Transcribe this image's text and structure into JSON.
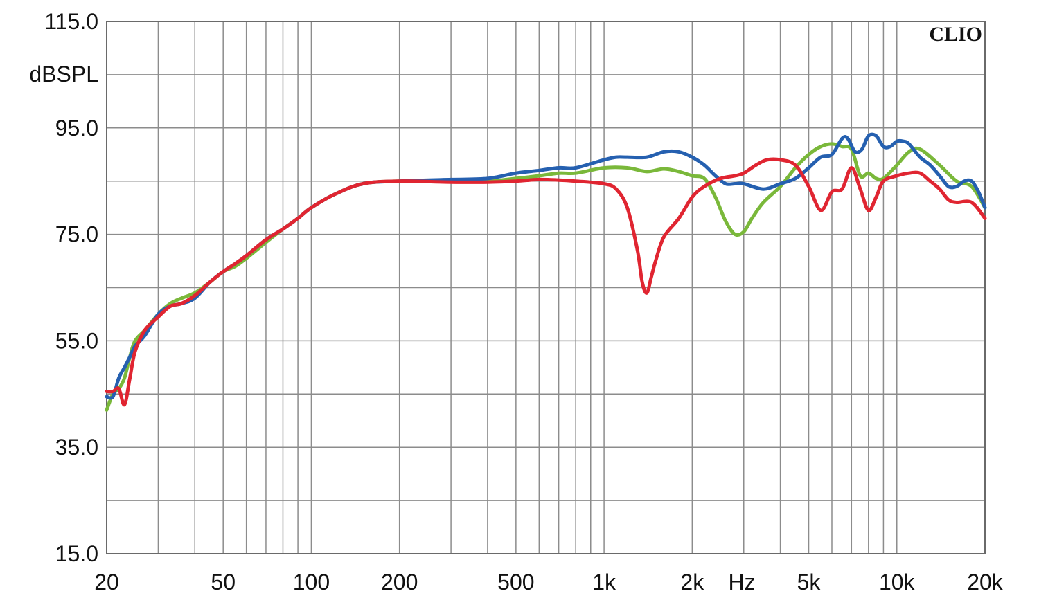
{
  "chart_data": {
    "type": "line",
    "brand": "CLIO",
    "ylabel": "dBSPL",
    "xunit": "Hz",
    "xscale": "log",
    "xlim": [
      20,
      20000
    ],
    "ylim": [
      15,
      115
    ],
    "grid": true,
    "y_ticks": [
      {
        "value": 15,
        "label": "15.0"
      },
      {
        "value": 35,
        "label": "35.0"
      },
      {
        "value": 55,
        "label": "55.0"
      },
      {
        "value": 75,
        "label": "75.0"
      },
      {
        "value": 95,
        "label": "95.0"
      },
      {
        "value": 115,
        "label": "115.0"
      }
    ],
    "x_ticks": [
      {
        "value": 20,
        "label": "20"
      },
      {
        "value": 50,
        "label": "50"
      },
      {
        "value": 100,
        "label": "100"
      },
      {
        "value": 200,
        "label": "200"
      },
      {
        "value": 500,
        "label": "500"
      },
      {
        "value": 1000,
        "label": "1k"
      },
      {
        "value": 2000,
        "label": "2k"
      },
      {
        "value": 5000,
        "label": "5k"
      },
      {
        "value": 10000,
        "label": "10k"
      },
      {
        "value": 20000,
        "label": "20k"
      }
    ],
    "series": [
      {
        "color": "#7ab83a",
        "x": [
          20,
          21,
          22,
          23,
          24,
          25,
          27,
          30,
          33,
          36,
          40,
          45,
          50,
          55,
          60,
          70,
          80,
          90,
          100,
          120,
          150,
          200,
          300,
          400,
          500,
          600,
          700,
          800,
          1000,
          1200,
          1400,
          1600,
          1800,
          2000,
          2200,
          2400,
          2600,
          2800,
          3000,
          3200,
          3500,
          4000,
          4500,
          5000,
          5500,
          6000,
          6500,
          7000,
          7500,
          8000,
          8500,
          9000,
          10000,
          11000,
          12000,
          14000,
          16000,
          18000,
          20000
        ],
        "y": [
          42,
          45,
          46,
          48,
          52,
          55,
          57,
          60,
          62,
          63,
          64,
          66,
          68,
          69,
          70.5,
          73.5,
          76,
          78,
          80,
          82.5,
          84.5,
          85,
          85,
          85,
          85.5,
          86,
          86.5,
          86.5,
          87.5,
          87.5,
          86.8,
          87.3,
          86.8,
          86,
          85.5,
          82,
          77.5,
          75,
          75.5,
          78,
          81,
          84,
          87.5,
          90,
          91.5,
          92,
          91.5,
          91,
          86,
          86.5,
          85.5,
          85.5,
          88,
          90.5,
          91,
          88,
          85,
          84,
          80
        ]
      },
      {
        "color": "#2560b0",
        "x": [
          20,
          21,
          22,
          23,
          24,
          25,
          27,
          30,
          33,
          36,
          40,
          45,
          50,
          55,
          60,
          70,
          80,
          90,
          100,
          120,
          150,
          200,
          300,
          400,
          500,
          600,
          700,
          800,
          1000,
          1100,
          1200,
          1400,
          1600,
          1800,
          2000,
          2200,
          2400,
          2600,
          2800,
          3000,
          3500,
          4000,
          4500,
          5000,
          5500,
          6000,
          6500,
          6800,
          7200,
          7600,
          8000,
          8500,
          9000,
          9500,
          10000,
          10500,
          11000,
          12000,
          13000,
          14000,
          15000,
          16000,
          17000,
          18000,
          19000,
          20000
        ],
        "y": [
          44.5,
          44.5,
          48,
          50,
          52,
          54,
          56,
          60,
          61.5,
          62,
          63,
          66,
          68,
          69.5,
          71,
          74,
          76,
          78,
          80,
          82.5,
          84.5,
          85,
          85.3,
          85.5,
          86.5,
          87,
          87.5,
          87.5,
          89,
          89.5,
          89.5,
          89.5,
          90.5,
          90.5,
          89.5,
          88,
          86,
          84.5,
          84.5,
          84.5,
          83.5,
          84.5,
          85.5,
          87.5,
          89.5,
          90,
          93,
          93,
          90.5,
          91,
          93.5,
          93.5,
          91.5,
          91.5,
          92.5,
          92.5,
          92,
          89.5,
          88,
          86,
          84,
          84,
          85,
          85,
          83,
          80
        ]
      },
      {
        "color": "#e02531",
        "x": [
          20,
          21,
          22,
          23,
          24,
          25,
          27,
          30,
          33,
          36,
          40,
          45,
          50,
          55,
          60,
          70,
          80,
          90,
          100,
          120,
          150,
          200,
          300,
          400,
          500,
          600,
          700,
          800,
          1000,
          1100,
          1200,
          1300,
          1350,
          1400,
          1450,
          1500,
          1600,
          1800,
          2000,
          2200,
          2500,
          2800,
          3000,
          3300,
          3600,
          4000,
          4500,
          5000,
          5500,
          6000,
          6500,
          7000,
          7500,
          8000,
          8500,
          9000,
          10000,
          11000,
          12000,
          13000,
          14000,
          15000,
          16000,
          18000,
          20000
        ],
        "y": [
          45.5,
          45.5,
          46,
          43,
          48,
          53,
          57,
          59.5,
          61.5,
          62,
          63.5,
          66,
          68,
          69.5,
          71,
          74,
          76,
          78,
          80,
          82.5,
          84.5,
          85,
          84.8,
          84.8,
          85,
          85.3,
          85.2,
          85,
          84.5,
          83.5,
          80,
          72,
          66,
          64,
          67,
          70,
          74.5,
          78,
          82,
          84,
          85.5,
          86,
          86.5,
          88,
          89,
          89,
          88,
          84,
          79.5,
          83,
          83.5,
          87.5,
          83.5,
          79.5,
          82,
          85,
          86,
          86.5,
          86.5,
          85,
          83.5,
          81.5,
          81,
          81,
          78
        ]
      }
    ]
  }
}
